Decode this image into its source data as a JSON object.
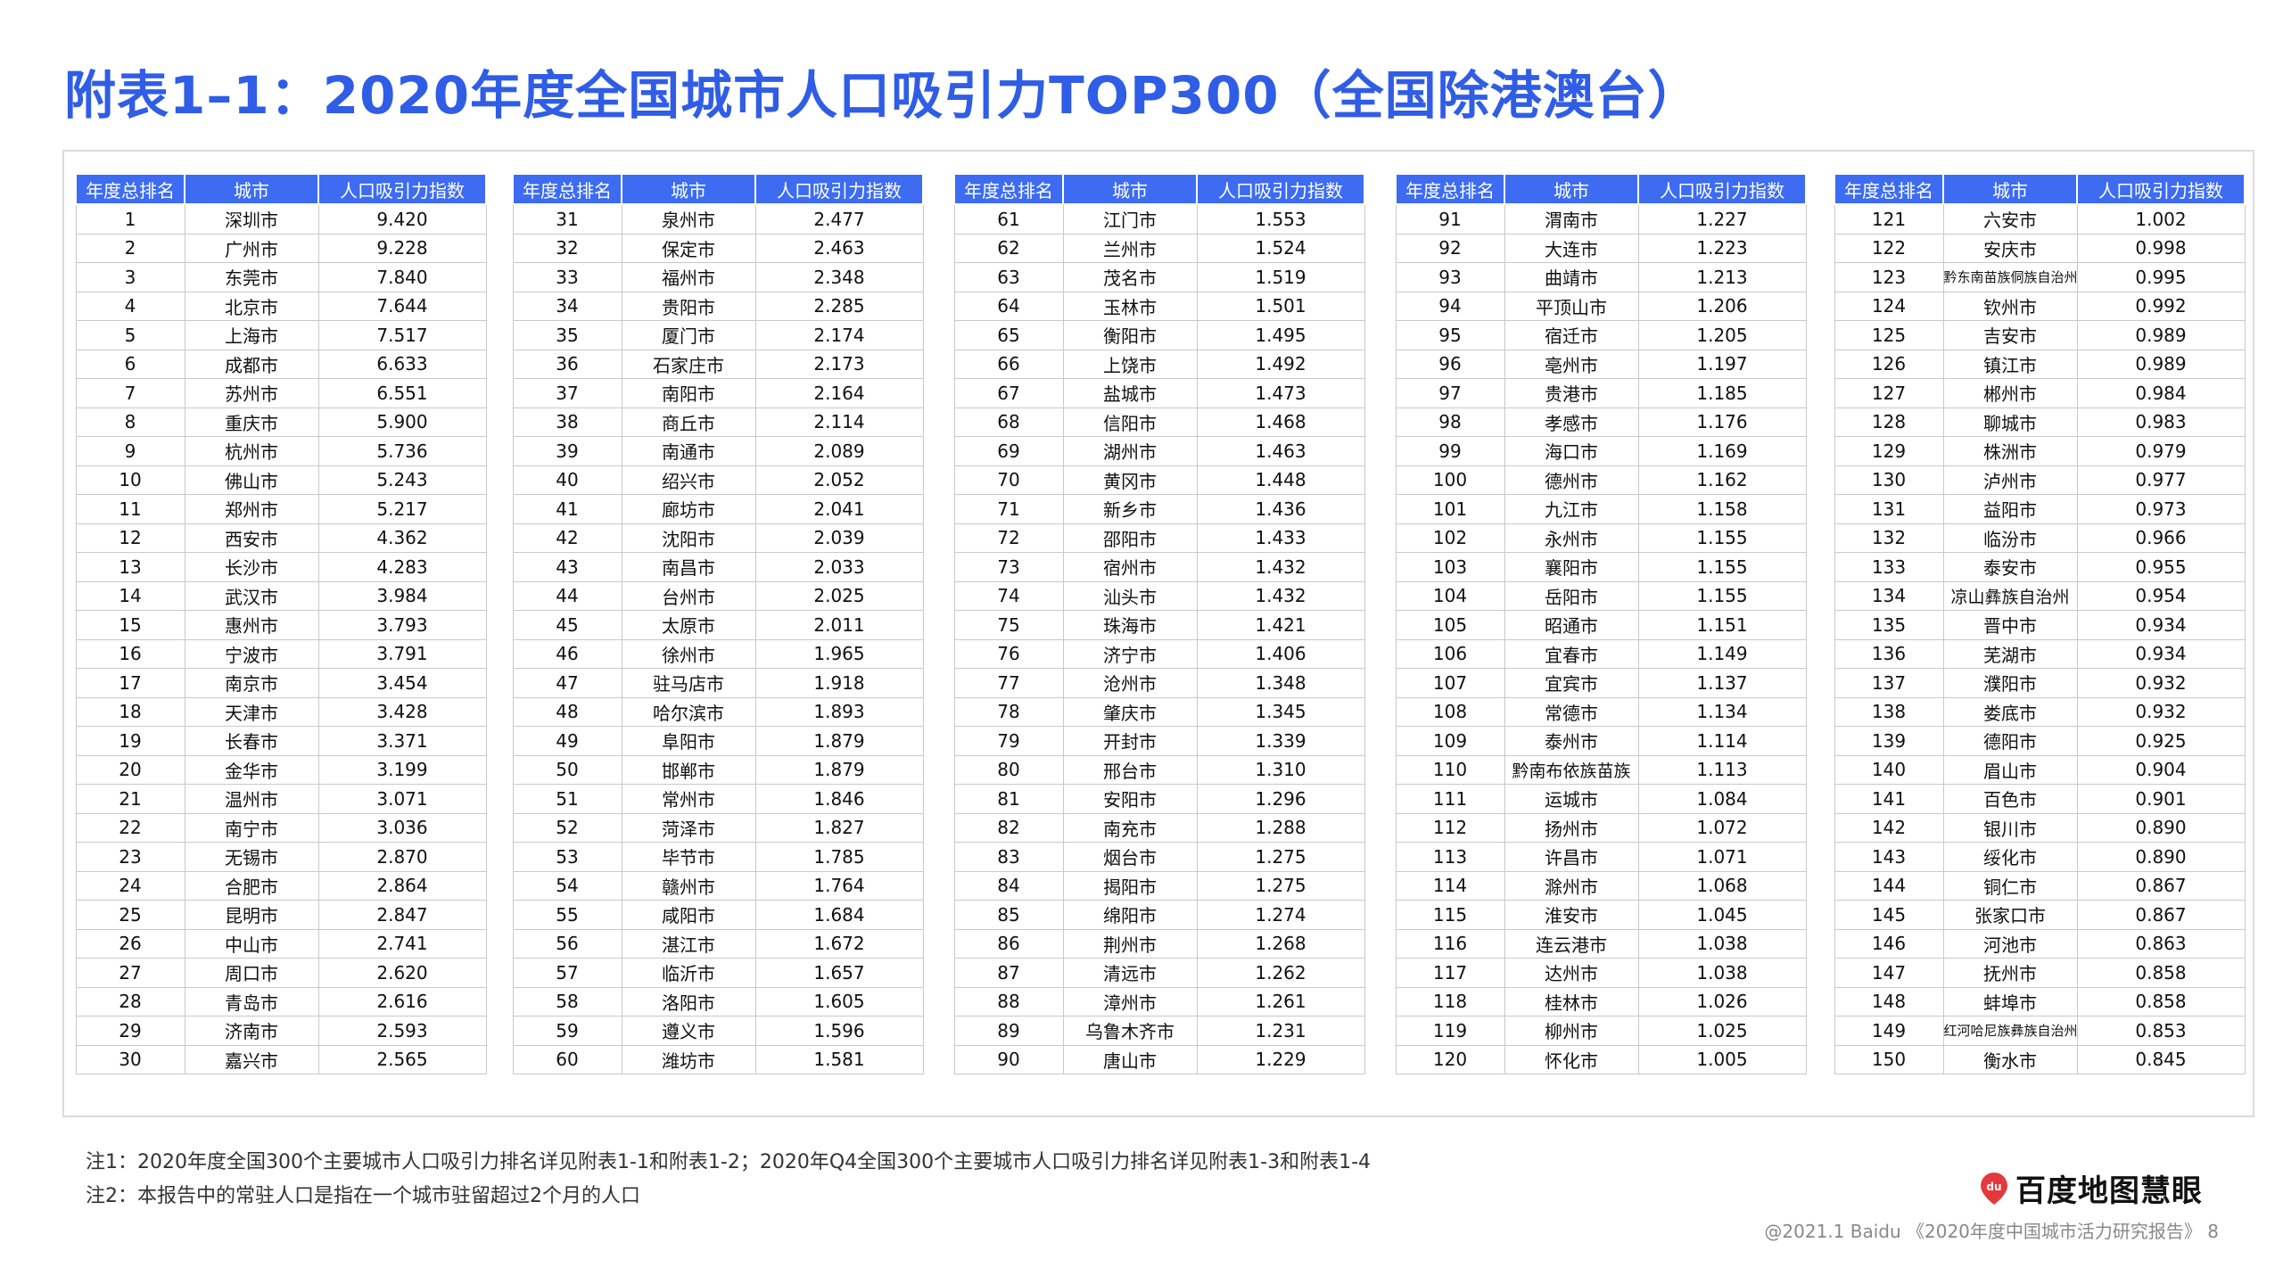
{
  "title": "附表1–1：2020年度全国城市人口吸引力TOP300（全国除港澳台）",
  "table_headers": [
    "年度总排名",
    "城市",
    "人口吸引力指数"
  ],
  "rows": [
    [
      "1",
      "深圳市",
      "9.420"
    ],
    [
      "2",
      "广州市",
      "9.228"
    ],
    [
      "3",
      "东莞市",
      "7.840"
    ],
    [
      "4",
      "北京市",
      "7.644"
    ],
    [
      "5",
      "上海市",
      "7.517"
    ],
    [
      "6",
      "成都市",
      "6.633"
    ],
    [
      "7",
      "苏州市",
      "6.551"
    ],
    [
      "8",
      "重庆市",
      "5.900"
    ],
    [
      "9",
      "杭州市",
      "5.736"
    ],
    [
      "10",
      "佛山市",
      "5.243"
    ],
    [
      "11",
      "郑州市",
      "5.217"
    ],
    [
      "12",
      "西安市",
      "4.362"
    ],
    [
      "13",
      "长沙市",
      "4.283"
    ],
    [
      "14",
      "武汉市",
      "3.984"
    ],
    [
      "15",
      "惠州市",
      "3.793"
    ],
    [
      "16",
      "宁波市",
      "3.791"
    ],
    [
      "17",
      "南京市",
      "3.454"
    ],
    [
      "18",
      "天津市",
      "3.428"
    ],
    [
      "19",
      "长春市",
      "3.371"
    ],
    [
      "20",
      "金华市",
      "3.199"
    ],
    [
      "21",
      "温州市",
      "3.071"
    ],
    [
      "22",
      "南宁市",
      "3.036"
    ],
    [
      "23",
      "无锡市",
      "2.870"
    ],
    [
      "24",
      "合肥市",
      "2.864"
    ],
    [
      "25",
      "昆明市",
      "2.847"
    ],
    [
      "26",
      "中山市",
      "2.741"
    ],
    [
      "27",
      "周口市",
      "2.620"
    ],
    [
      "28",
      "青岛市",
      "2.616"
    ],
    [
      "29",
      "济南市",
      "2.593"
    ],
    [
      "30",
      "嘉兴市",
      "2.565"
    ],
    [
      "31",
      "泉州市",
      "2.477"
    ],
    [
      "32",
      "保定市",
      "2.463"
    ],
    [
      "33",
      "福州市",
      "2.348"
    ],
    [
      "34",
      "贵阳市",
      "2.285"
    ],
    [
      "35",
      "厦门市",
      "2.174"
    ],
    [
      "36",
      "石家庄市",
      "2.173"
    ],
    [
      "37",
      "南阳市",
      "2.164"
    ],
    [
      "38",
      "商丘市",
      "2.114"
    ],
    [
      "39",
      "南通市",
      "2.089"
    ],
    [
      "40",
      "绍兴市",
      "2.052"
    ],
    [
      "41",
      "廊坊市",
      "2.041"
    ],
    [
      "42",
      "沈阳市",
      "2.039"
    ],
    [
      "43",
      "南昌市",
      "2.033"
    ],
    [
      "44",
      "台州市",
      "2.025"
    ],
    [
      "45",
      "太原市",
      "2.011"
    ],
    [
      "46",
      "徐州市",
      "1.965"
    ],
    [
      "47",
      "驻马店市",
      "1.918"
    ],
    [
      "48",
      "哈尔滨市",
      "1.893"
    ],
    [
      "49",
      "阜阳市",
      "1.879"
    ],
    [
      "50",
      "邯郸市",
      "1.879"
    ],
    [
      "51",
      "常州市",
      "1.846"
    ],
    [
      "52",
      "菏泽市",
      "1.827"
    ],
    [
      "53",
      "毕节市",
      "1.785"
    ],
    [
      "54",
      "赣州市",
      "1.764"
    ],
    [
      "55",
      "咸阳市",
      "1.684"
    ],
    [
      "56",
      "湛江市",
      "1.672"
    ],
    [
      "57",
      "临沂市",
      "1.657"
    ],
    [
      "58",
      "洛阳市",
      "1.605"
    ],
    [
      "59",
      "遵义市",
      "1.596"
    ],
    [
      "60",
      "潍坊市",
      "1.581"
    ],
    [
      "61",
      "江门市",
      "1.553"
    ],
    [
      "62",
      "兰州市",
      "1.524"
    ],
    [
      "63",
      "茂名市",
      "1.519"
    ],
    [
      "64",
      "玉林市",
      "1.501"
    ],
    [
      "65",
      "衡阳市",
      "1.495"
    ],
    [
      "66",
      "上饶市",
      "1.492"
    ],
    [
      "67",
      "盐城市",
      "1.473"
    ],
    [
      "68",
      "信阳市",
      "1.468"
    ],
    [
      "69",
      "湖州市",
      "1.463"
    ],
    [
      "70",
      "黄冈市",
      "1.448"
    ],
    [
      "71",
      "新乡市",
      "1.436"
    ],
    [
      "72",
      "邵阳市",
      "1.433"
    ],
    [
      "73",
      "宿州市",
      "1.432"
    ],
    [
      "74",
      "汕头市",
      "1.432"
    ],
    [
      "75",
      "珠海市",
      "1.421"
    ],
    [
      "76",
      "济宁市",
      "1.406"
    ],
    [
      "77",
      "沧州市",
      "1.348"
    ],
    [
      "78",
      "肇庆市",
      "1.345"
    ],
    [
      "79",
      "开封市",
      "1.339"
    ],
    [
      "80",
      "邢台市",
      "1.310"
    ],
    [
      "81",
      "安阳市",
      "1.296"
    ],
    [
      "82",
      "南充市",
      "1.288"
    ],
    [
      "83",
      "烟台市",
      "1.275"
    ],
    [
      "84",
      "揭阳市",
      "1.275"
    ],
    [
      "85",
      "绵阳市",
      "1.274"
    ],
    [
      "86",
      "荆州市",
      "1.268"
    ],
    [
      "87",
      "清远市",
      "1.262"
    ],
    [
      "88",
      "漳州市",
      "1.261"
    ],
    [
      "89",
      "乌鲁木齐市",
      "1.231"
    ],
    [
      "90",
      "唐山市",
      "1.229"
    ],
    [
      "91",
      "渭南市",
      "1.227"
    ],
    [
      "92",
      "大连市",
      "1.223"
    ],
    [
      "93",
      "曲靖市",
      "1.213"
    ],
    [
      "94",
      "平顶山市",
      "1.206"
    ],
    [
      "95",
      "宿迁市",
      "1.205"
    ],
    [
      "96",
      "亳州市",
      "1.197"
    ],
    [
      "97",
      "贵港市",
      "1.185"
    ],
    [
      "98",
      "孝感市",
      "1.176"
    ],
    [
      "99",
      "海口市",
      "1.169"
    ],
    [
      "100",
      "德州市",
      "1.162"
    ],
    [
      "101",
      "九江市",
      "1.158"
    ],
    [
      "102",
      "永州市",
      "1.155"
    ],
    [
      "103",
      "襄阳市",
      "1.155"
    ],
    [
      "104",
      "岳阳市",
      "1.155"
    ],
    [
      "105",
      "昭通市",
      "1.151"
    ],
    [
      "106",
      "宜春市",
      "1.149"
    ],
    [
      "107",
      "宜宾市",
      "1.137"
    ],
    [
      "108",
      "常德市",
      "1.134"
    ],
    [
      "109",
      "泰州市",
      "1.114"
    ],
    [
      "110",
      "黔南布依族苗族",
      "1.113"
    ],
    [
      "111",
      "运城市",
      "1.084"
    ],
    [
      "112",
      "扬州市",
      "1.072"
    ],
    [
      "113",
      "许昌市",
      "1.071"
    ],
    [
      "114",
      "滁州市",
      "1.068"
    ],
    [
      "115",
      "淮安市",
      "1.045"
    ],
    [
      "116",
      "连云港市",
      "1.038"
    ],
    [
      "117",
      "达州市",
      "1.038"
    ],
    [
      "118",
      "桂林市",
      "1.026"
    ],
    [
      "119",
      "柳州市",
      "1.025"
    ],
    [
      "120",
      "怀化市",
      "1.005"
    ],
    [
      "121",
      "六安市",
      "1.002"
    ],
    [
      "122",
      "安庆市",
      "0.998"
    ],
    [
      "123",
      "黔东南苗族侗族自治州",
      "0.995"
    ],
    [
      "124",
      "钦州市",
      "0.992"
    ],
    [
      "125",
      "吉安市",
      "0.989"
    ],
    [
      "126",
      "镇江市",
      "0.989"
    ],
    [
      "127",
      "郴州市",
      "0.984"
    ],
    [
      "128",
      "聊城市",
      "0.983"
    ],
    [
      "129",
      "株洲市",
      "0.979"
    ],
    [
      "130",
      "泸州市",
      "0.977"
    ],
    [
      "131",
      "益阳市",
      "0.973"
    ],
    [
      "132",
      "临汾市",
      "0.966"
    ],
    [
      "133",
      "泰安市",
      "0.955"
    ],
    [
      "134",
      "凉山彝族自治州",
      "0.954"
    ],
    [
      "135",
      "晋中市",
      "0.934"
    ],
    [
      "136",
      "芜湖市",
      "0.934"
    ],
    [
      "137",
      "濮阳市",
      "0.932"
    ],
    [
      "138",
      "娄底市",
      "0.932"
    ],
    [
      "139",
      "德阳市",
      "0.925"
    ],
    [
      "140",
      "眉山市",
      "0.904"
    ],
    [
      "141",
      "百色市",
      "0.901"
    ],
    [
      "142",
      "银川市",
      "0.890"
    ],
    [
      "143",
      "绥化市",
      "0.890"
    ],
    [
      "144",
      "铜仁市",
      "0.867"
    ],
    [
      "145",
      "张家口市",
      "0.867"
    ],
    [
      "146",
      "河池市",
      "0.863"
    ],
    [
      "147",
      "抚州市",
      "0.858"
    ],
    [
      "148",
      "蚌埠市",
      "0.858"
    ],
    [
      "149",
      "红河哈尼族彝族自治州",
      "0.853"
    ],
    [
      "150",
      "衡水市",
      "0.845"
    ]
  ],
  "notes": [
    "注1：2020年度全国300个主要城市人口吸引力排名详见附表1-1和附表1-2；2020年Q4全国300个主要城市人口吸引力排名详见附表1-3和附表1-4",
    "注2：本报告中的常驻人口是指在一个城市驻留超过2个月的人口"
  ],
  "logo": {
    "icon": "baidu-map-pin-icon",
    "mark": "du",
    "text": "百度地图慧眼"
  },
  "footer": "@2021.1 Baidu 《2020年度中国城市活力研究报告》 8",
  "colors": {
    "title": "#2f5de6",
    "header_bg": "#3d6cf2",
    "logo_red": "#e4393c"
  }
}
